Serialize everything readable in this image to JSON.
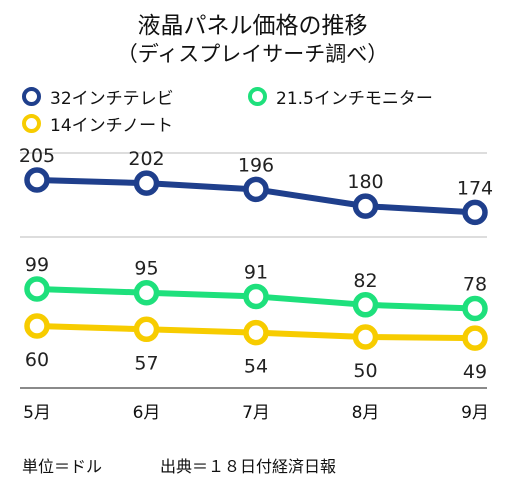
{
  "chart_data": {
    "type": "line",
    "title": "液晶パネル価格の推移",
    "subtitle": "（ディスプレイサーチ調べ）",
    "categories": [
      "5月",
      "6月",
      "7月",
      "8月",
      "9月"
    ],
    "series": [
      {
        "name": "32インチテレビ",
        "color": "#1f3f8c",
        "values": [
          205,
          202,
          196,
          180,
          174
        ],
        "label_position": "above"
      },
      {
        "name": "21.5インチモニター",
        "color": "#1ee07c",
        "values": [
          99,
          95,
          91,
          82,
          78
        ],
        "label_position": "above"
      },
      {
        "name": "14インチノート",
        "color": "#f7cc00",
        "values": [
          60,
          57,
          54,
          50,
          49
        ],
        "label_position": "below"
      }
    ],
    "xlabel": "",
    "ylabel": "",
    "grid": true,
    "legend_position": "top"
  },
  "footer": {
    "unit": "単位＝ドル",
    "source": "出典＝１８日付経済日報"
  }
}
